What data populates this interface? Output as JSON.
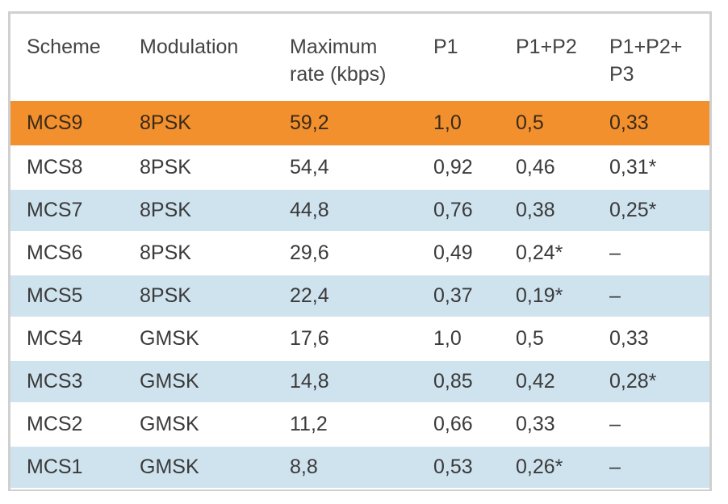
{
  "table": {
    "headers": [
      "Scheme",
      "Modulation",
      "Maximum rate (kbps)",
      "P1",
      "P1+P2",
      "P1+P2+ P3"
    ],
    "rows": [
      {
        "scheme": "MCS9",
        "modulation": "8PSK",
        "rate": "59,2",
        "p1": "1,0",
        "p1p2": "0,5",
        "p1p2p3": "0,33"
      },
      {
        "scheme": "MCS8",
        "modulation": "8PSK",
        "rate": "54,4",
        "p1": "0,92",
        "p1p2": "0,46",
        "p1p2p3": "0,31*"
      },
      {
        "scheme": "MCS7",
        "modulation": "8PSK",
        "rate": "44,8",
        "p1": "0,76",
        "p1p2": "0,38",
        "p1p2p3": "0,25*"
      },
      {
        "scheme": "MCS6",
        "modulation": "8PSK",
        "rate": "29,6",
        "p1": "0,49",
        "p1p2": "0,24*",
        "p1p2p3": "–"
      },
      {
        "scheme": "MCS5",
        "modulation": "8PSK",
        "rate": "22,4",
        "p1": "0,37",
        "p1p2": "0,19*",
        "p1p2p3": "–"
      },
      {
        "scheme": "MCS4",
        "modulation": "GMSK",
        "rate": "17,6",
        "p1": "1,0",
        "p1p2": "0,5",
        "p1p2p3": "0,33"
      },
      {
        "scheme": "MCS3",
        "modulation": "GMSK",
        "rate": "14,8",
        "p1": "0,85",
        "p1p2": "0,42",
        "p1p2p3": "0,28*"
      },
      {
        "scheme": "MCS2",
        "modulation": "GMSK",
        "rate": "11,2",
        "p1": "0,66",
        "p1p2": "0,33",
        "p1p2p3": "–"
      },
      {
        "scheme": "MCS1",
        "modulation": "GMSK",
        "rate": "8,8",
        "p1": "0,53",
        "p1p2": "0,26*",
        "p1p2p3": "–"
      }
    ]
  },
  "colors": {
    "highlight_row": "#f2902e",
    "striped_row": "#cfe3ef",
    "plain_row": "#ffffff",
    "border": "#d0d0d0"
  }
}
